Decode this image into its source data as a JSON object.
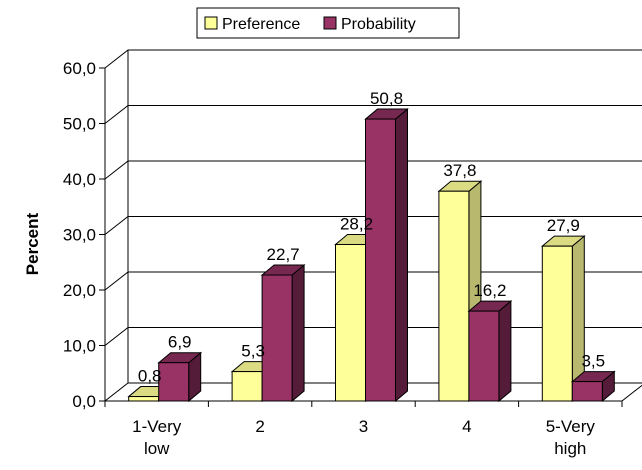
{
  "chart_data": {
    "type": "bar",
    "title": "",
    "xlabel": "",
    "ylabel": "Percent",
    "ylim": [
      0,
      60
    ],
    "yticks": [
      "0,0",
      "10,0",
      "20,0",
      "30,0",
      "40,0",
      "50,0",
      "60,0"
    ],
    "categories": [
      [
        "1-Very",
        "low"
      ],
      [
        "2"
      ],
      [
        "3"
      ],
      [
        "4"
      ],
      [
        "5-Very",
        "high"
      ]
    ],
    "series": [
      {
        "name": "Preference",
        "values": [
          0.8,
          5.3,
          28.2,
          37.8,
          27.9
        ],
        "labels": [
          "0,8",
          "5,3",
          "28,2",
          "37,8",
          "27,9"
        ],
        "color": "#ffff99"
      },
      {
        "name": "Probability",
        "values": [
          6.9,
          22.7,
          50.8,
          16.2,
          3.5
        ],
        "labels": [
          "6,9",
          "22,7",
          "50,8",
          "16,2",
          "3,5"
        ],
        "color": "#993366"
      }
    ],
    "grid": true,
    "legend_position": "top"
  }
}
